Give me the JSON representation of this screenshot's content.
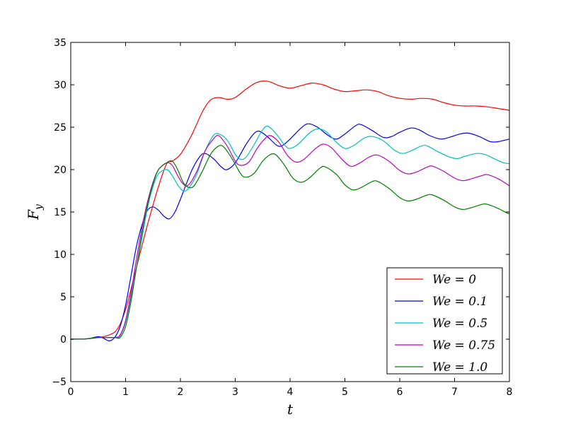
{
  "chart_data": {
    "type": "line",
    "title": "",
    "xlabel": "t",
    "ylabel": "F",
    "ylabel_sub": "y",
    "xlim": [
      0,
      8
    ],
    "ylim": [
      -5,
      35
    ],
    "xticks": [
      0,
      1,
      2,
      3,
      4,
      5,
      6,
      7,
      8
    ],
    "yticks": [
      -5,
      0,
      5,
      10,
      15,
      20,
      25,
      30,
      35
    ],
    "xtick_labels": [
      "0",
      "1",
      "2",
      "3",
      "4",
      "5",
      "6",
      "7",
      "8"
    ],
    "ytick_labels": [
      "−5",
      "0",
      "5",
      "10",
      "15",
      "20",
      "25",
      "30",
      "35"
    ],
    "grid": false,
    "legend_position": "lower-right",
    "series": [
      {
        "name": "We = 0",
        "color": "#ff0000",
        "points": [
          [
            0,
            0
          ],
          [
            0.3,
            0.05
          ],
          [
            0.5,
            0.2
          ],
          [
            0.7,
            0.5
          ],
          [
            0.85,
            1.2
          ],
          [
            1.0,
            3.5
          ],
          [
            1.2,
            8.5
          ],
          [
            1.4,
            13.5
          ],
          [
            1.6,
            18.0
          ],
          [
            1.75,
            20.7
          ],
          [
            1.85,
            21.0
          ],
          [
            2.0,
            21.8
          ],
          [
            2.2,
            24.0
          ],
          [
            2.4,
            26.8
          ],
          [
            2.55,
            28.2
          ],
          [
            2.7,
            28.5
          ],
          [
            2.85,
            28.3
          ],
          [
            3.0,
            28.5
          ],
          [
            3.2,
            29.5
          ],
          [
            3.4,
            30.3
          ],
          [
            3.6,
            30.4
          ],
          [
            3.8,
            29.9
          ],
          [
            4.0,
            29.6
          ],
          [
            4.2,
            29.9
          ],
          [
            4.4,
            30.2
          ],
          [
            4.6,
            30.0
          ],
          [
            4.8,
            29.5
          ],
          [
            5.0,
            29.2
          ],
          [
            5.2,
            29.3
          ],
          [
            5.4,
            29.4
          ],
          [
            5.6,
            29.2
          ],
          [
            5.8,
            28.7
          ],
          [
            6.0,
            28.4
          ],
          [
            6.2,
            28.3
          ],
          [
            6.4,
            28.4
          ],
          [
            6.6,
            28.3
          ],
          [
            6.8,
            27.9
          ],
          [
            7.0,
            27.6
          ],
          [
            7.2,
            27.5
          ],
          [
            7.4,
            27.5
          ],
          [
            7.6,
            27.4
          ],
          [
            7.8,
            27.2
          ],
          [
            8.0,
            27.0
          ]
        ]
      },
      {
        "name": "We = 0.1",
        "color": "#0000ff",
        "points": [
          [
            0,
            0
          ],
          [
            0.3,
            0.05
          ],
          [
            0.5,
            0.3
          ],
          [
            0.6,
            0.1
          ],
          [
            0.7,
            -0.2
          ],
          [
            0.8,
            0.2
          ],
          [
            0.9,
            1.5
          ],
          [
            1.0,
            4.0
          ],
          [
            1.1,
            7.5
          ],
          [
            1.2,
            11.0
          ],
          [
            1.3,
            13.5
          ],
          [
            1.4,
            15.2
          ],
          [
            1.5,
            15.6
          ],
          [
            1.6,
            15.2
          ],
          [
            1.7,
            14.5
          ],
          [
            1.8,
            14.2
          ],
          [
            1.9,
            15.0
          ],
          [
            2.0,
            16.5
          ],
          [
            2.2,
            19.8
          ],
          [
            2.35,
            21.5
          ],
          [
            2.45,
            21.9
          ],
          [
            2.6,
            21.3
          ],
          [
            2.75,
            20.3
          ],
          [
            2.85,
            20.0
          ],
          [
            3.0,
            20.8
          ],
          [
            3.2,
            23.0
          ],
          [
            3.35,
            24.3
          ],
          [
            3.45,
            24.5
          ],
          [
            3.6,
            23.8
          ],
          [
            3.75,
            22.9
          ],
          [
            3.85,
            22.8
          ],
          [
            4.0,
            23.6
          ],
          [
            4.2,
            24.9
          ],
          [
            4.33,
            25.4
          ],
          [
            4.5,
            25.0
          ],
          [
            4.7,
            24.0
          ],
          [
            4.85,
            23.6
          ],
          [
            5.0,
            24.2
          ],
          [
            5.2,
            25.2
          ],
          [
            5.3,
            25.3
          ],
          [
            5.5,
            24.6
          ],
          [
            5.7,
            23.8
          ],
          [
            5.85,
            23.9
          ],
          [
            6.0,
            24.4
          ],
          [
            6.2,
            24.9
          ],
          [
            6.35,
            24.7
          ],
          [
            6.55,
            24.0
          ],
          [
            6.75,
            23.6
          ],
          [
            6.9,
            23.8
          ],
          [
            7.1,
            24.2
          ],
          [
            7.25,
            24.3
          ],
          [
            7.45,
            23.9
          ],
          [
            7.65,
            23.3
          ],
          [
            7.8,
            23.3
          ],
          [
            8.0,
            23.6
          ]
        ]
      },
      {
        "name": "We = 0.5",
        "color": "#00bfbf",
        "points": [
          [
            0,
            0
          ],
          [
            0.3,
            0.05
          ],
          [
            0.5,
            0.2
          ],
          [
            0.8,
            0.2
          ],
          [
            0.9,
            0.4
          ],
          [
            1.0,
            2.0
          ],
          [
            1.1,
            5.0
          ],
          [
            1.2,
            8.5
          ],
          [
            1.3,
            12.0
          ],
          [
            1.4,
            15.5
          ],
          [
            1.5,
            18.0
          ],
          [
            1.6,
            19.5
          ],
          [
            1.75,
            20.0
          ],
          [
            1.85,
            19.3
          ],
          [
            1.95,
            18.2
          ],
          [
            2.05,
            17.5
          ],
          [
            2.15,
            17.8
          ],
          [
            2.3,
            19.5
          ],
          [
            2.45,
            22.2
          ],
          [
            2.6,
            24.0
          ],
          [
            2.7,
            24.2
          ],
          [
            2.85,
            23.5
          ],
          [
            3.0,
            21.8
          ],
          [
            3.1,
            21.2
          ],
          [
            3.2,
            21.5
          ],
          [
            3.35,
            23.0
          ],
          [
            3.5,
            24.7
          ],
          [
            3.6,
            25.1
          ],
          [
            3.75,
            24.2
          ],
          [
            3.9,
            22.9
          ],
          [
            4.0,
            22.5
          ],
          [
            4.15,
            23.0
          ],
          [
            4.35,
            24.3
          ],
          [
            4.5,
            24.8
          ],
          [
            4.65,
            24.5
          ],
          [
            4.85,
            23.2
          ],
          [
            5.0,
            22.5
          ],
          [
            5.15,
            22.8
          ],
          [
            5.35,
            23.7
          ],
          [
            5.5,
            23.9
          ],
          [
            5.7,
            23.4
          ],
          [
            5.9,
            22.3
          ],
          [
            6.05,
            21.9
          ],
          [
            6.2,
            22.2
          ],
          [
            6.4,
            22.8
          ],
          [
            6.5,
            22.8
          ],
          [
            6.7,
            22.1
          ],
          [
            6.9,
            21.5
          ],
          [
            7.05,
            21.3
          ],
          [
            7.2,
            21.6
          ],
          [
            7.4,
            21.9
          ],
          [
            7.55,
            21.8
          ],
          [
            7.75,
            21.2
          ],
          [
            7.9,
            20.8
          ],
          [
            8.0,
            20.7
          ]
        ]
      },
      {
        "name": "We = 0.75",
        "color": "#bf00bf",
        "points": [
          [
            0,
            0
          ],
          [
            0.3,
            0.05
          ],
          [
            0.5,
            0.2
          ],
          [
            0.8,
            0.2
          ],
          [
            0.9,
            0.5
          ],
          [
            1.0,
            2.2
          ],
          [
            1.1,
            5.5
          ],
          [
            1.2,
            9.5
          ],
          [
            1.3,
            13.2
          ],
          [
            1.4,
            16.2
          ],
          [
            1.5,
            18.5
          ],
          [
            1.6,
            20.0
          ],
          [
            1.75,
            20.8
          ],
          [
            1.85,
            20.5
          ],
          [
            1.95,
            19.3
          ],
          [
            2.05,
            18.3
          ],
          [
            2.15,
            18.2
          ],
          [
            2.3,
            19.8
          ],
          [
            2.45,
            22.2
          ],
          [
            2.6,
            23.6
          ],
          [
            2.7,
            24.0
          ],
          [
            2.85,
            22.8
          ],
          [
            3.0,
            21.0
          ],
          [
            3.1,
            20.5
          ],
          [
            3.25,
            20.9
          ],
          [
            3.4,
            22.5
          ],
          [
            3.55,
            23.7
          ],
          [
            3.65,
            24.0
          ],
          [
            3.8,
            23.2
          ],
          [
            3.95,
            21.7
          ],
          [
            4.1,
            20.9
          ],
          [
            4.25,
            21.2
          ],
          [
            4.45,
            22.4
          ],
          [
            4.6,
            23.0
          ],
          [
            4.75,
            22.6
          ],
          [
            4.95,
            21.2
          ],
          [
            5.1,
            20.4
          ],
          [
            5.25,
            20.7
          ],
          [
            5.45,
            21.5
          ],
          [
            5.6,
            21.7
          ],
          [
            5.8,
            21.0
          ],
          [
            6.0,
            19.9
          ],
          [
            6.15,
            19.5
          ],
          [
            6.3,
            19.7
          ],
          [
            6.5,
            20.3
          ],
          [
            6.6,
            20.4
          ],
          [
            6.8,
            19.8
          ],
          [
            7.0,
            19.0
          ],
          [
            7.15,
            18.7
          ],
          [
            7.3,
            18.9
          ],
          [
            7.5,
            19.3
          ],
          [
            7.6,
            19.4
          ],
          [
            7.8,
            18.9
          ],
          [
            7.95,
            18.3
          ],
          [
            8.0,
            18.1
          ]
        ]
      },
      {
        "name": "We = 1.0",
        "color": "#007f00",
        "points": [
          [
            0,
            0
          ],
          [
            0.3,
            0.05
          ],
          [
            0.5,
            0.2
          ],
          [
            0.8,
            0.2
          ],
          [
            0.9,
            0.2
          ],
          [
            1.0,
            1.5
          ],
          [
            1.1,
            4.5
          ],
          [
            1.2,
            8.5
          ],
          [
            1.3,
            12.5
          ],
          [
            1.4,
            15.8
          ],
          [
            1.5,
            18.3
          ],
          [
            1.6,
            20.0
          ],
          [
            1.75,
            20.8
          ],
          [
            1.85,
            21.0
          ],
          [
            1.95,
            20.0
          ],
          [
            2.05,
            18.5
          ],
          [
            2.15,
            17.9
          ],
          [
            2.25,
            18.1
          ],
          [
            2.4,
            19.8
          ],
          [
            2.55,
            21.8
          ],
          [
            2.7,
            22.8
          ],
          [
            2.8,
            22.6
          ],
          [
            2.95,
            21.2
          ],
          [
            3.1,
            19.5
          ],
          [
            3.2,
            19.1
          ],
          [
            3.35,
            19.6
          ],
          [
            3.5,
            21.0
          ],
          [
            3.65,
            21.8
          ],
          [
            3.75,
            21.7
          ],
          [
            3.9,
            20.5
          ],
          [
            4.05,
            19.0
          ],
          [
            4.2,
            18.5
          ],
          [
            4.35,
            19.0
          ],
          [
            4.55,
            20.2
          ],
          [
            4.65,
            20.3
          ],
          [
            4.85,
            19.4
          ],
          [
            5.0,
            18.2
          ],
          [
            5.15,
            17.6
          ],
          [
            5.3,
            17.9
          ],
          [
            5.5,
            18.6
          ],
          [
            5.6,
            18.6
          ],
          [
            5.8,
            17.8
          ],
          [
            6.0,
            16.7
          ],
          [
            6.15,
            16.3
          ],
          [
            6.3,
            16.5
          ],
          [
            6.5,
            17.0
          ],
          [
            6.6,
            17.0
          ],
          [
            6.8,
            16.4
          ],
          [
            7.0,
            15.6
          ],
          [
            7.15,
            15.3
          ],
          [
            7.3,
            15.5
          ],
          [
            7.5,
            15.9
          ],
          [
            7.6,
            15.9
          ],
          [
            7.8,
            15.4
          ],
          [
            7.95,
            14.9
          ],
          [
            8.0,
            14.8
          ]
        ]
      }
    ],
    "legend_labels": [
      "We = 0",
      "We = 0.1",
      "We = 0.5",
      "We = 0.75",
      "We = 1.0"
    ]
  }
}
